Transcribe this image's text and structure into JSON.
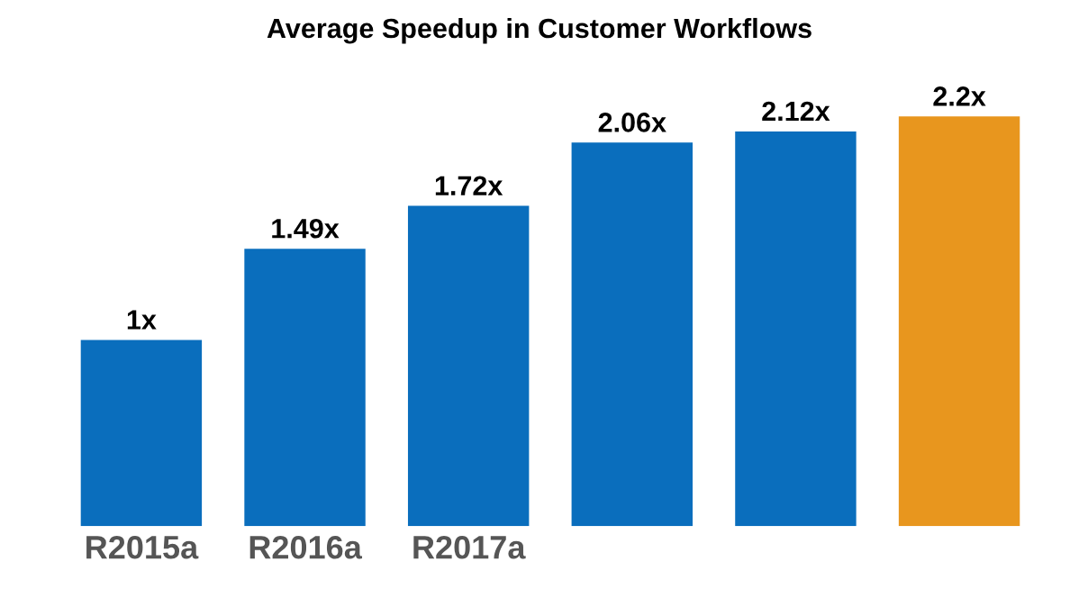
{
  "chart_data": {
    "type": "bar",
    "title": "Average Speedup in Customer Workflows",
    "categories": [
      "R2015a",
      "R2016a",
      "R2017a",
      null,
      null,
      null
    ],
    "values": [
      1,
      1.49,
      1.72,
      2.06,
      2.12,
      2.2
    ],
    "value_labels": [
      "1x",
      "1.49x",
      "1.72x",
      "2.06x",
      "2.12x",
      "2.2x"
    ],
    "colors": [
      "#0a6ebd",
      "#0a6ebd",
      "#0a6ebd",
      "#0a6ebd",
      "#0a6ebd",
      "#e8961e"
    ],
    "grid": false,
    "legend": false
  }
}
